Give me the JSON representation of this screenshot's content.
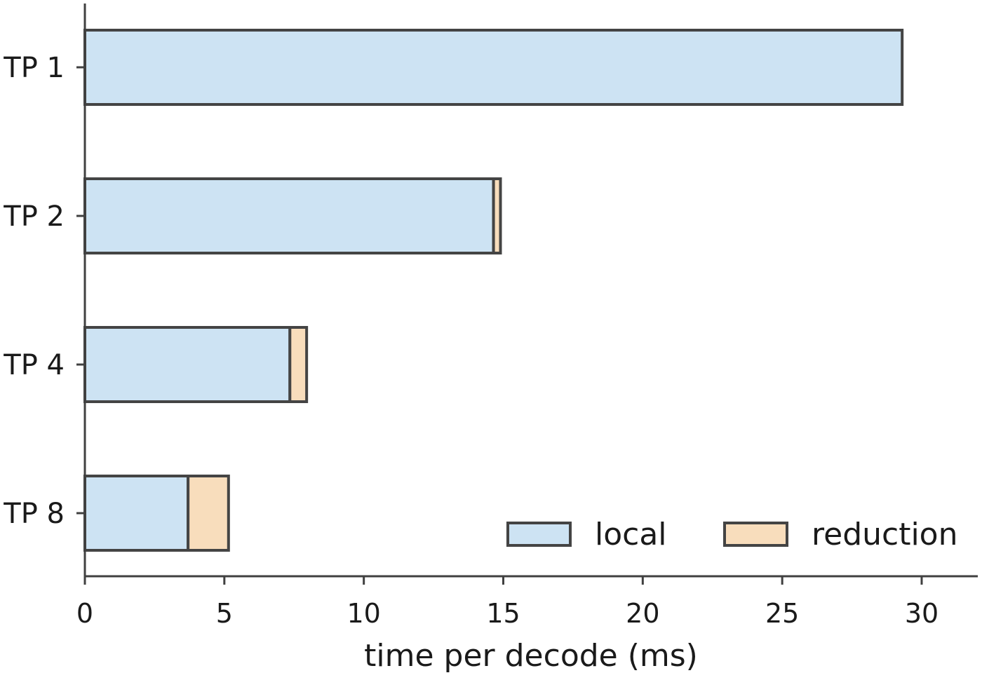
{
  "chart_data": {
    "type": "bar",
    "orientation": "horizontal",
    "stacked": true,
    "title": "",
    "xlabel": "time per decode (ms)",
    "ylabel": "",
    "categories": [
      "TP 1",
      "TP 2",
      "TP 4",
      "TP 8"
    ],
    "series": [
      {
        "name": "local",
        "values": [
          29.3,
          14.65,
          7.35,
          3.7
        ],
        "color": "#cde3f3"
      },
      {
        "name": "reduction",
        "values": [
          0.0,
          0.25,
          0.6,
          1.45
        ],
        "color": "#f8ddbc"
      }
    ],
    "xlim": [
      0,
      32
    ],
    "xticks": [
      0,
      5,
      10,
      15,
      20,
      25,
      30
    ],
    "grid": false,
    "legend": {
      "position": "lower-right",
      "columns": 2
    }
  }
}
